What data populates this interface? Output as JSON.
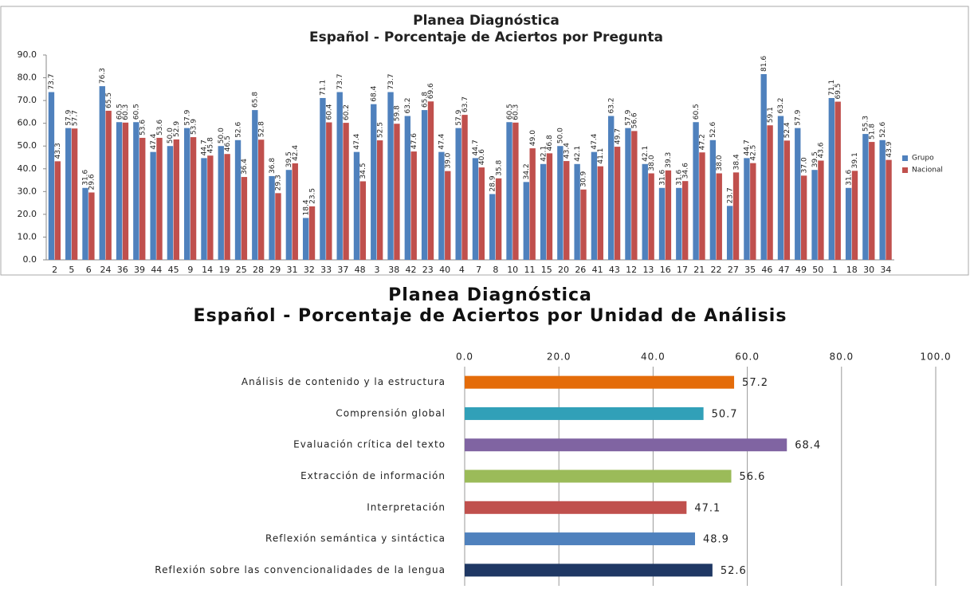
{
  "chart_data": [
    {
      "type": "bar",
      "title": "Planea Diagnóstica",
      "subtitle": "Español - Porcentaje de Aciertos por Pregunta",
      "categories": [
        "2",
        "5",
        "6",
        "24",
        "36",
        "39",
        "44",
        "45",
        "9",
        "14",
        "19",
        "25",
        "28",
        "29",
        "31",
        "32",
        "33",
        "37",
        "48",
        "3",
        "38",
        "42",
        "23",
        "40",
        "4",
        "7",
        "8",
        "10",
        "11",
        "15",
        "20",
        "26",
        "41",
        "43",
        "12",
        "13",
        "16",
        "17",
        "21",
        "22",
        "27",
        "35",
        "46",
        "47",
        "49",
        "50",
        "1",
        "18",
        "30",
        "34"
      ],
      "series": [
        {
          "name": "Grupo",
          "color": "#4f81bd",
          "values": [
            73.7,
            57.9,
            31.6,
            76.3,
            60.5,
            60.5,
            47.4,
            50,
            57.9,
            44.7,
            50,
            52.6,
            65.8,
            36.8,
            39.5,
            18.4,
            71.1,
            73.7,
            47.4,
            68.4,
            73.7,
            63.2,
            65.8,
            47.4,
            57.9,
            44.7,
            28.9,
            60.5,
            34.2,
            42.1,
            50,
            42.1,
            47.4,
            63.2,
            57.9,
            42.1,
            31.6,
            31.6,
            60.5,
            52.6,
            23.7,
            44.7,
            81.6,
            63.2,
            57.9,
            39.5,
            71.1,
            31.6,
            55.3,
            52.6
          ],
          "value_labels": [
            "73.7",
            "57.9",
            "31.6",
            "76.3",
            "60.5",
            "60.5",
            "47.4",
            "50.0",
            "57.9",
            "44.7",
            "50.0",
            "52.6",
            "65.8",
            "36.8",
            "39.5",
            "18.4",
            "71.1",
            "73.7",
            "47.4",
            "68.4",
            "73.7",
            "63.2",
            "65.8",
            "47.4",
            "57.9",
            "44.7",
            "28.9",
            "60.5",
            "34.2",
            "42.1",
            "50.0",
            "42.1",
            "47.4",
            "63.2",
            "57.9",
            "42.1",
            "31.6",
            "31.6",
            "60.5",
            "52.6",
            "23.7",
            "44.7",
            "81.6",
            "63.2",
            "57.9",
            "39.5",
            "71.1",
            "31.6",
            "55.3",
            "52.6"
          ]
        },
        {
          "name": "Nacional",
          "color": "#c0504d",
          "values": [
            43.3,
            57.7,
            29.6,
            65.5,
            60.3,
            53.6,
            53.6,
            52.9,
            53.9,
            45.8,
            46.5,
            36.4,
            52.8,
            29.3,
            42.4,
            23.5,
            60.4,
            60.2,
            34.5,
            52.5,
            59.8,
            47.6,
            69.6,
            39,
            63.7,
            40.6,
            35.8,
            60.3,
            49,
            46.8,
            43.4,
            30.9,
            41.1,
            49.7,
            56.6,
            38,
            39.3,
            34.6,
            47.2,
            38,
            38.4,
            42.5,
            59.1,
            52.4,
            37,
            43.6,
            69.5,
            39.1,
            51.8,
            43.9
          ],
          "value_labels": [
            "43.3",
            "57.7",
            "29.6",
            "65.5",
            "60.3",
            "53.6",
            "53.6",
            "52.9",
            "53.9",
            "45.8",
            "46.5",
            "36.4",
            "52.8",
            "29.3",
            "42.4",
            "23.5",
            "60.4",
            "60.2",
            "34.5",
            "52.5",
            "59.8",
            "47.6",
            "69.6",
            "39.0",
            "63.7",
            "40.6",
            "35.8",
            "60.3",
            "49.0",
            "46.8",
            "43.4",
            "30.9",
            "41.1",
            "49.7",
            "56.6",
            "38.0",
            "39.3",
            "34.6",
            "47.2",
            "38.0",
            "38.4",
            "42.5",
            "59.1",
            "52.4",
            "37.0",
            "43.6",
            "69.5",
            "39.1",
            "51.8",
            "43.9"
          ]
        }
      ],
      "ylim": [
        0,
        90
      ],
      "yticks": [
        {
          "value": 0,
          "label": "0.0"
        },
        {
          "value": 10,
          "label": "10.0"
        },
        {
          "value": 20,
          "label": "20.0"
        },
        {
          "value": 30,
          "label": "30.0"
        },
        {
          "value": 40,
          "label": "40.0"
        },
        {
          "value": 50,
          "label": "50.0"
        },
        {
          "value": 60,
          "label": "60.0"
        },
        {
          "value": 70,
          "label": "70.0"
        },
        {
          "value": 80,
          "label": "80.0"
        },
        {
          "value": 90,
          "label": "90.0"
        }
      ],
      "grid": false,
      "legend": "right"
    },
    {
      "type": "barh",
      "title": "Planea Diagnóstica",
      "subtitle": "Español - Porcentaje de Aciertos por Unidad de Análisis",
      "categories": [
        "Análisis de contenido y la estructura",
        "Comprensión global",
        "Evaluación crítica del texto",
        "Extracción de información",
        "Interpretación",
        "Reflexión semántica y sintáctica",
        "Reflexión sobre las convencionalidades de la lengua"
      ],
      "values": [
        57.2,
        50.7,
        68.4,
        56.6,
        47.1,
        48.9,
        52.6
      ],
      "colors": [
        "#e46c0a",
        "#31a0b8",
        "#8064a2",
        "#9bbb59",
        "#c0504d",
        "#4f81bd",
        "#1f3864"
      ],
      "xlim": [
        0,
        100
      ],
      "xticks": [
        {
          "value": 0,
          "label": "0.0"
        },
        {
          "value": 20,
          "label": "20.0"
        },
        {
          "value": 40,
          "label": "40.0"
        },
        {
          "value": 60,
          "label": "60.0"
        },
        {
          "value": 80,
          "label": "80.0"
        },
        {
          "value": 100,
          "label": "100.0"
        }
      ],
      "grid": true
    }
  ]
}
